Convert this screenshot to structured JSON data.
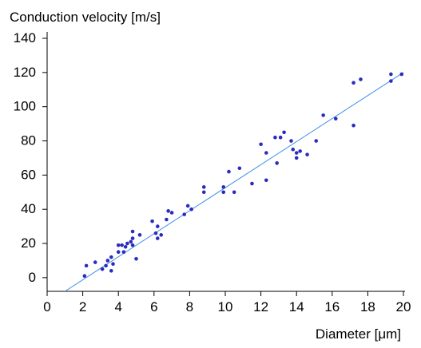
{
  "chart_data": {
    "type": "scatter",
    "title": "",
    "ylabel": "Conduction velocity [m/s]",
    "xlabel": "Diameter [μm]",
    "xlim": [
      0,
      20
    ],
    "ylim": [
      -8,
      140
    ],
    "xticks": [
      "0",
      "2",
      "4",
      "6",
      "8",
      "10",
      "12",
      "14",
      "16",
      "18",
      "20"
    ],
    "yticks": [
      "0",
      "20",
      "40",
      "60",
      "80",
      "100",
      "120",
      "140"
    ],
    "grid": false,
    "colors": {
      "points": "#2b2bbd",
      "fit_line": "#3a8ee6",
      "axes": "#000000"
    },
    "fit_line": {
      "x": [
        1.0,
        20.0
      ],
      "y": [
        -8.0,
        120.0
      ]
    },
    "points": [
      {
        "x": 2.1,
        "y": 1.0
      },
      {
        "x": 2.2,
        "y": 7.0
      },
      {
        "x": 2.7,
        "y": 9.0
      },
      {
        "x": 3.1,
        "y": 5.0
      },
      {
        "x": 3.3,
        "y": 7.0
      },
      {
        "x": 3.4,
        "y": 10.0
      },
      {
        "x": 3.6,
        "y": 12.0
      },
      {
        "x": 3.6,
        "y": 4.0
      },
      {
        "x": 3.7,
        "y": 8.0
      },
      {
        "x": 4.0,
        "y": 15.0
      },
      {
        "x": 4.0,
        "y": 19.0
      },
      {
        "x": 4.2,
        "y": 19.0
      },
      {
        "x": 4.3,
        "y": 15.0
      },
      {
        "x": 4.4,
        "y": 18.0
      },
      {
        "x": 4.5,
        "y": 20.0
      },
      {
        "x": 4.7,
        "y": 21.0
      },
      {
        "x": 4.8,
        "y": 19.0
      },
      {
        "x": 4.8,
        "y": 23.0
      },
      {
        "x": 4.8,
        "y": 27.0
      },
      {
        "x": 5.0,
        "y": 11.0
      },
      {
        "x": 5.2,
        "y": 25.0
      },
      {
        "x": 5.9,
        "y": 33.0
      },
      {
        "x": 6.1,
        "y": 26.0
      },
      {
        "x": 6.2,
        "y": 23.0
      },
      {
        "x": 6.2,
        "y": 30.0
      },
      {
        "x": 6.4,
        "y": 25.0
      },
      {
        "x": 6.7,
        "y": 34.0
      },
      {
        "x": 6.8,
        "y": 39.0
      },
      {
        "x": 7.0,
        "y": 38.0
      },
      {
        "x": 7.7,
        "y": 37.0
      },
      {
        "x": 7.9,
        "y": 42.0
      },
      {
        "x": 8.1,
        "y": 40.0
      },
      {
        "x": 8.8,
        "y": 50.0
      },
      {
        "x": 8.8,
        "y": 53.0
      },
      {
        "x": 9.9,
        "y": 50.0
      },
      {
        "x": 9.9,
        "y": 53.0
      },
      {
        "x": 10.2,
        "y": 62.0
      },
      {
        "x": 10.5,
        "y": 50.0
      },
      {
        "x": 10.8,
        "y": 64.0
      },
      {
        "x": 11.5,
        "y": 55.0
      },
      {
        "x": 12.0,
        "y": 78.0
      },
      {
        "x": 12.3,
        "y": 57.0
      },
      {
        "x": 12.3,
        "y": 73.0
      },
      {
        "x": 12.8,
        "y": 82.0
      },
      {
        "x": 12.9,
        "y": 67.0
      },
      {
        "x": 13.1,
        "y": 82.0
      },
      {
        "x": 13.3,
        "y": 85.0
      },
      {
        "x": 13.7,
        "y": 80.0
      },
      {
        "x": 13.8,
        "y": 75.0
      },
      {
        "x": 14.0,
        "y": 70.0
      },
      {
        "x": 14.0,
        "y": 73.0
      },
      {
        "x": 14.2,
        "y": 74.0
      },
      {
        "x": 14.6,
        "y": 72.0
      },
      {
        "x": 15.1,
        "y": 80.0
      },
      {
        "x": 15.5,
        "y": 95.0
      },
      {
        "x": 16.2,
        "y": 93.0
      },
      {
        "x": 17.2,
        "y": 89.0
      },
      {
        "x": 17.2,
        "y": 114.0
      },
      {
        "x": 17.6,
        "y": 116.0
      },
      {
        "x": 19.3,
        "y": 115.0
      },
      {
        "x": 19.3,
        "y": 119.0
      },
      {
        "x": 19.9,
        "y": 119.0
      }
    ]
  }
}
